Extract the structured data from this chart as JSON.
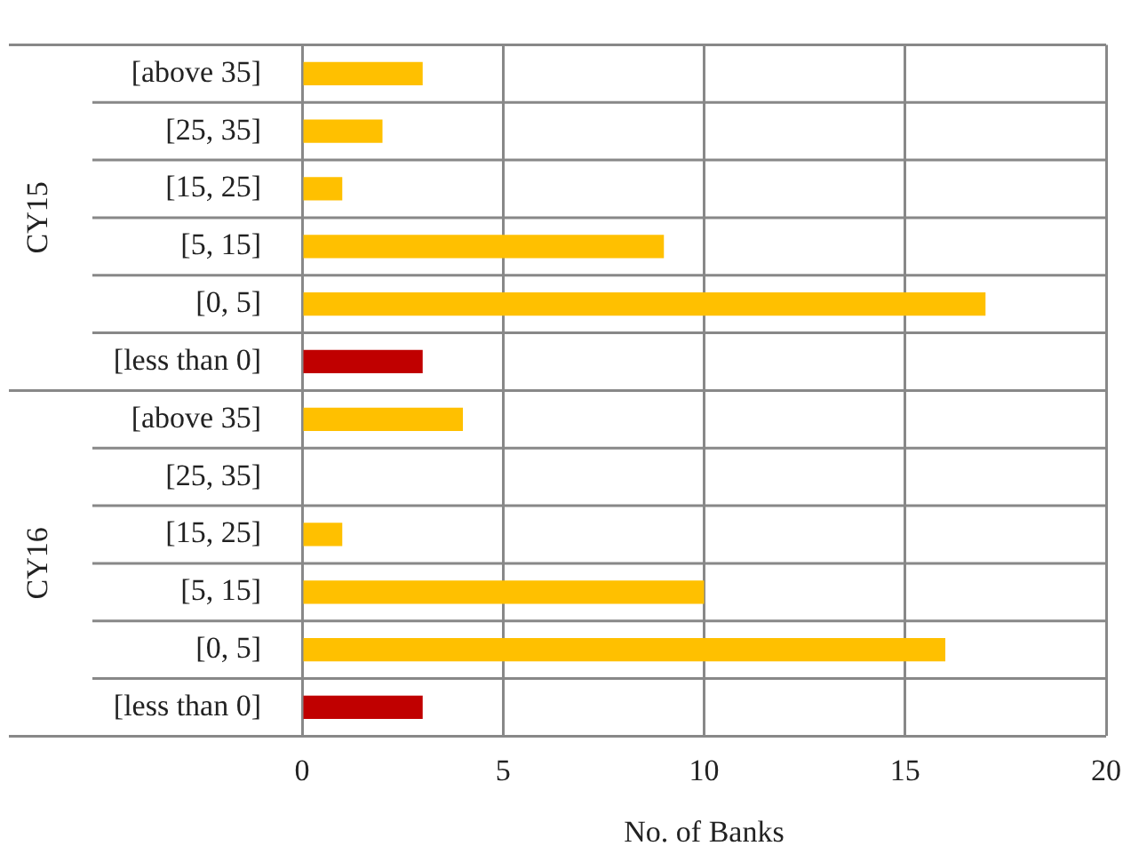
{
  "chart_data": {
    "type": "bar",
    "orientation": "horizontal",
    "xlabel": "No. of Banks",
    "categories": [
      "[above 35]",
      "[25, 35]",
      "[15, 25]",
      "[5, 15]",
      "[0, 5]",
      "[less than 0]",
      "[above 35]",
      "[25, 35]",
      "[15, 25]",
      "[5, 15]",
      "[0, 5]",
      "[less than 0]"
    ],
    "values": [
      3,
      2,
      1,
      9,
      17,
      3,
      4,
      0,
      1,
      10,
      16,
      3
    ],
    "colors": [
      "#ffc000",
      "#ffc000",
      "#ffc000",
      "#ffc000",
      "#ffc000",
      "#c00000",
      "#ffc000",
      "#ffc000",
      "#ffc000",
      "#ffc000",
      "#ffc000",
      "#c00000"
    ],
    "xlim": [
      0,
      20
    ],
    "xticks": [
      0,
      5,
      10,
      15,
      20
    ],
    "grid": true,
    "legend": false,
    "annotations": [
      "CY15",
      "CY16"
    ]
  }
}
